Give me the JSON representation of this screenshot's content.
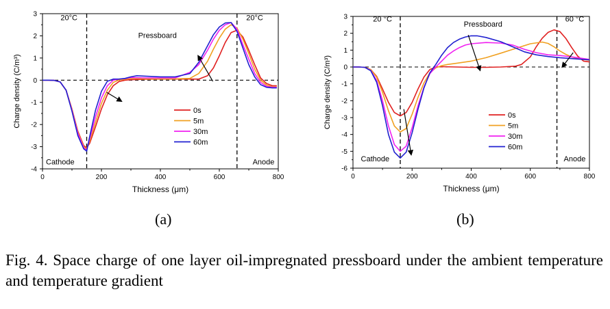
{
  "chart_data": [
    {
      "type": "line",
      "panel_label": "(a)",
      "xlabel": "Thickness (μm)",
      "ylabel": "Charge density (C/m³)",
      "xlim": [
        0,
        800
      ],
      "ylim": [
        -4,
        3
      ],
      "xticks": [
        0,
        200,
        400,
        600,
        800
      ],
      "yticks": [
        -4,
        -3,
        -2,
        -1,
        0,
        1,
        2,
        3
      ],
      "grid": false,
      "legend_position": "center-right",
      "vlines": [
        150,
        660
      ],
      "zero_line": true,
      "annotations": [
        {
          "text": "20°C",
          "x": 90,
          "y": 2.7
        },
        {
          "text": "20°C",
          "x": 720,
          "y": 2.7
        },
        {
          "text": "Pressboard",
          "x": 390,
          "y": 1.9
        },
        {
          "text": "Cathode",
          "x": 60,
          "y": -3.8
        },
        {
          "text": "Anode",
          "x": 750,
          "y": -3.8
        }
      ],
      "arrows": [
        {
          "from": [
            218,
            -0.55
          ],
          "to": [
            268,
            -0.95
          ]
        },
        {
          "from": [
            578,
            -0.05
          ],
          "to": [
            528,
            1.1
          ]
        }
      ],
      "series": [
        {
          "name": "0s",
          "color": "#e02020",
          "x": [
            0,
            20,
            40,
            60,
            80,
            100,
            120,
            140,
            150,
            160,
            180,
            200,
            220,
            240,
            260,
            280,
            300,
            350,
            400,
            450,
            500,
            530,
            560,
            580,
            600,
            620,
            640,
            660,
            680,
            700,
            720,
            740,
            760,
            780,
            795
          ],
          "y": [
            0,
            0,
            -0.01,
            -0.08,
            -0.45,
            -1.3,
            -2.3,
            -2.95,
            -3.05,
            -2.85,
            -2.1,
            -1.3,
            -0.65,
            -0.25,
            -0.06,
            0,
            0.02,
            0.04,
            0.05,
            0.05,
            0.05,
            0.05,
            0.2,
            0.55,
            1.1,
            1.7,
            2.15,
            2.25,
            1.95,
            1.35,
            0.7,
            0.1,
            -0.15,
            -0.25,
            -0.25
          ]
        },
        {
          "name": "5m",
          "color": "#f0a020",
          "x": [
            0,
            20,
            40,
            60,
            80,
            100,
            120,
            140,
            150,
            160,
            180,
            200,
            220,
            240,
            260,
            280,
            300,
            350,
            400,
            450,
            500,
            530,
            560,
            580,
            600,
            620,
            640,
            660,
            680,
            700,
            720,
            740,
            760,
            780,
            795
          ],
          "y": [
            0,
            0,
            -0.01,
            -0.08,
            -0.45,
            -1.3,
            -2.35,
            -3.0,
            -3.1,
            -2.75,
            -1.9,
            -1.05,
            -0.45,
            -0.1,
            0.01,
            0.04,
            0.08,
            0.06,
            0.06,
            0.06,
            0.08,
            0.3,
            0.85,
            1.4,
            1.9,
            2.3,
            2.5,
            2.35,
            1.85,
            1.2,
            0.5,
            0.0,
            -0.22,
            -0.3,
            -0.3
          ]
        },
        {
          "name": "30m",
          "color": "#f020f0",
          "x": [
            0,
            20,
            40,
            60,
            80,
            100,
            120,
            140,
            150,
            160,
            180,
            200,
            220,
            240,
            260,
            280,
            300,
            350,
            400,
            450,
            500,
            530,
            560,
            580,
            600,
            620,
            640,
            660,
            680,
            700,
            720,
            740,
            760,
            780,
            795
          ],
          "y": [
            0,
            0,
            -0.01,
            -0.08,
            -0.45,
            -1.35,
            -2.4,
            -3.05,
            -3.15,
            -2.65,
            -1.65,
            -0.8,
            -0.25,
            0.0,
            0.05,
            0.07,
            0.12,
            0.1,
            0.1,
            0.1,
            0.35,
            0.7,
            1.35,
            1.85,
            2.25,
            2.5,
            2.6,
            2.3,
            1.6,
            0.95,
            0.3,
            -0.1,
            -0.28,
            -0.32,
            -0.32
          ]
        },
        {
          "name": "60m",
          "color": "#2020d0",
          "x": [
            0,
            20,
            40,
            60,
            80,
            100,
            120,
            140,
            150,
            160,
            180,
            200,
            220,
            240,
            260,
            280,
            300,
            320,
            350,
            400,
            450,
            500,
            530,
            560,
            580,
            600,
            620,
            640,
            660,
            680,
            700,
            720,
            740,
            760,
            780,
            795
          ],
          "y": [
            0,
            0,
            -0.01,
            -0.08,
            -0.45,
            -1.4,
            -2.5,
            -3.1,
            -3.2,
            -2.55,
            -1.35,
            -0.5,
            -0.05,
            0.05,
            0.05,
            0.08,
            0.15,
            0.2,
            0.18,
            0.15,
            0.15,
            0.3,
            0.8,
            1.55,
            2.05,
            2.4,
            2.58,
            2.6,
            2.2,
            1.45,
            0.7,
            0.15,
            -0.2,
            -0.32,
            -0.35,
            -0.35
          ]
        }
      ]
    },
    {
      "type": "line",
      "panel_label": "(b)",
      "xlabel": "Thickness (μm)",
      "ylabel": "Charge density (C/m³)",
      "xlim": [
        0,
        800
      ],
      "ylim": [
        -6,
        3
      ],
      "xticks": [
        0,
        200,
        400,
        600,
        800
      ],
      "yticks": [
        -6,
        -5,
        -4,
        -3,
        -2,
        -1,
        0,
        1,
        2,
        3
      ],
      "grid": false,
      "legend_position": "center-right",
      "vlines": [
        160,
        690
      ],
      "zero_line": true,
      "annotations": [
        {
          "text": "20 °C",
          "x": 100,
          "y": 2.7
        },
        {
          "text": "60 °C",
          "x": 750,
          "y": 2.7
        },
        {
          "text": "Pressboard",
          "x": 440,
          "y": 2.4
        },
        {
          "text": "Cathode",
          "x": 75,
          "y": -5.6
        },
        {
          "text": "Anode",
          "x": 750,
          "y": -5.6
        }
      ],
      "arrows": [
        {
          "from": [
            390,
            1.9
          ],
          "to": [
            430,
            -0.2
          ]
        },
        {
          "from": [
            745,
            0.85
          ],
          "to": [
            708,
            0.0
          ]
        },
        {
          "from": [
            172,
            -2.5
          ],
          "to": [
            197,
            -5.2
          ]
        }
      ],
      "series": [
        {
          "name": "0s",
          "color": "#e02020",
          "x": [
            0,
            20,
            40,
            60,
            80,
            100,
            120,
            140,
            160,
            180,
            200,
            220,
            240,
            260,
            280,
            300,
            350,
            400,
            450,
            500,
            550,
            570,
            600,
            620,
            640,
            660,
            680,
            700,
            720,
            740,
            760,
            780,
            800
          ],
          "y": [
            0,
            0,
            -0.02,
            -0.15,
            -0.55,
            -1.3,
            -2.1,
            -2.7,
            -2.9,
            -2.7,
            -2.1,
            -1.3,
            -0.6,
            -0.15,
            0,
            0.02,
            0,
            -0.02,
            -0.02,
            0,
            0.05,
            0.15,
            0.6,
            1.2,
            1.7,
            2.05,
            2.2,
            2.1,
            1.7,
            1.15,
            0.65,
            0.35,
            0.3
          ]
        },
        {
          "name": "5m",
          "color": "#f0a020",
          "x": [
            0,
            20,
            40,
            60,
            80,
            100,
            120,
            140,
            160,
            180,
            200,
            220,
            240,
            260,
            280,
            300,
            320,
            350,
            400,
            450,
            500,
            550,
            600,
            640,
            660,
            680,
            700,
            720,
            740,
            760,
            780,
            800
          ],
          "y": [
            0,
            0,
            -0.02,
            -0.15,
            -0.6,
            -1.5,
            -2.6,
            -3.5,
            -3.85,
            -3.65,
            -2.8,
            -1.8,
            -0.95,
            -0.35,
            -0.05,
            0.08,
            0.15,
            0.22,
            0.35,
            0.55,
            0.82,
            1.1,
            1.38,
            1.48,
            1.4,
            1.2,
            0.95,
            0.75,
            0.6,
            0.5,
            0.45,
            0.4
          ]
        },
        {
          "name": "30m",
          "color": "#f020f0",
          "x": [
            0,
            20,
            40,
            60,
            80,
            100,
            120,
            140,
            160,
            180,
            200,
            220,
            240,
            260,
            280,
            300,
            320,
            340,
            360,
            380,
            400,
            450,
            500,
            540,
            580,
            620,
            660,
            700,
            740,
            780,
            800
          ],
          "y": [
            0,
            0,
            -0.02,
            -0.2,
            -0.8,
            -2.0,
            -3.5,
            -4.6,
            -5.0,
            -4.7,
            -3.6,
            -2.3,
            -1.2,
            -0.4,
            0.0,
            0.35,
            0.7,
            0.95,
            1.15,
            1.3,
            1.38,
            1.45,
            1.42,
            1.3,
            1.05,
            0.85,
            0.72,
            0.68,
            0.6,
            0.5,
            0.45
          ]
        },
        {
          "name": "60m",
          "color": "#2020d0",
          "x": [
            0,
            20,
            40,
            60,
            80,
            100,
            120,
            140,
            160,
            180,
            200,
            220,
            240,
            260,
            280,
            300,
            320,
            340,
            360,
            380,
            400,
            420,
            450,
            500,
            540,
            580,
            620,
            660,
            700,
            740,
            780,
            800
          ],
          "y": [
            0,
            0,
            -0.02,
            -0.22,
            -0.9,
            -2.3,
            -4.0,
            -5.05,
            -5.4,
            -5.05,
            -3.9,
            -2.5,
            -1.25,
            -0.35,
            0.15,
            0.7,
            1.15,
            1.45,
            1.65,
            1.78,
            1.85,
            1.85,
            1.75,
            1.5,
            1.2,
            0.9,
            0.72,
            0.62,
            0.55,
            0.5,
            0.45,
            0.42
          ]
        }
      ]
    }
  ],
  "caption": "Fig. 4.  Space charge of one layer oil-impregnated pressboard under the ambient temperature and temperature gradient"
}
